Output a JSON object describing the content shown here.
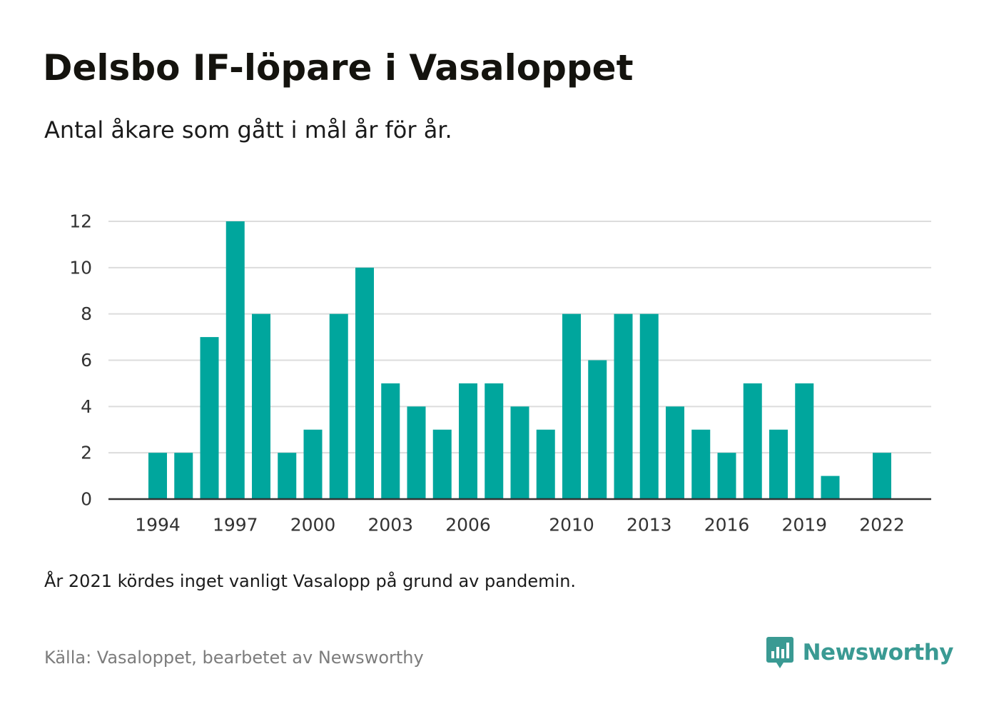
{
  "title": "Delsbo IF-löpare i Vasaloppet",
  "subtitle": "Antal åkare som gått i mål år för år.",
  "note": "År 2021 kördes inget vanligt Vasalopp på grund av pandemin.",
  "source": "Källa: Vasaloppet, bearbetet av Newsworthy",
  "brand": {
    "name": "Newsworthy",
    "icon": "bar-chart-speech-bubble-icon"
  },
  "colors": {
    "bar": "#00a69d",
    "grid": "#dcdcdc",
    "axis": "#333333",
    "brand": "#3a9a93",
    "text": "#14130e",
    "muted": "#7c7c7c"
  },
  "chart_data": {
    "type": "bar",
    "x": [
      1994,
      1995,
      1996,
      1997,
      1998,
      1999,
      2000,
      2001,
      2002,
      2003,
      2004,
      2005,
      2006,
      2007,
      2008,
      2009,
      2010,
      2011,
      2012,
      2013,
      2014,
      2015,
      2016,
      2017,
      2018,
      2019,
      2020,
      2021,
      2022
    ],
    "values": [
      2,
      2,
      7,
      12,
      8,
      2,
      3,
      8,
      10,
      5,
      4,
      3,
      5,
      5,
      4,
      3,
      8,
      6,
      8,
      8,
      4,
      3,
      2,
      5,
      3,
      5,
      1,
      0,
      2
    ],
    "x_ticks": [
      "1994",
      "1997",
      "2000",
      "2003",
      "2006",
      "2010",
      "2013",
      "2016",
      "2019",
      "2022"
    ],
    "y_ticks": [
      "0",
      "2",
      "4",
      "6",
      "8",
      "10",
      "12"
    ],
    "ylim": [
      0,
      12
    ],
    "xlabel": "",
    "ylabel": "",
    "grid": true,
    "legend": "none"
  }
}
